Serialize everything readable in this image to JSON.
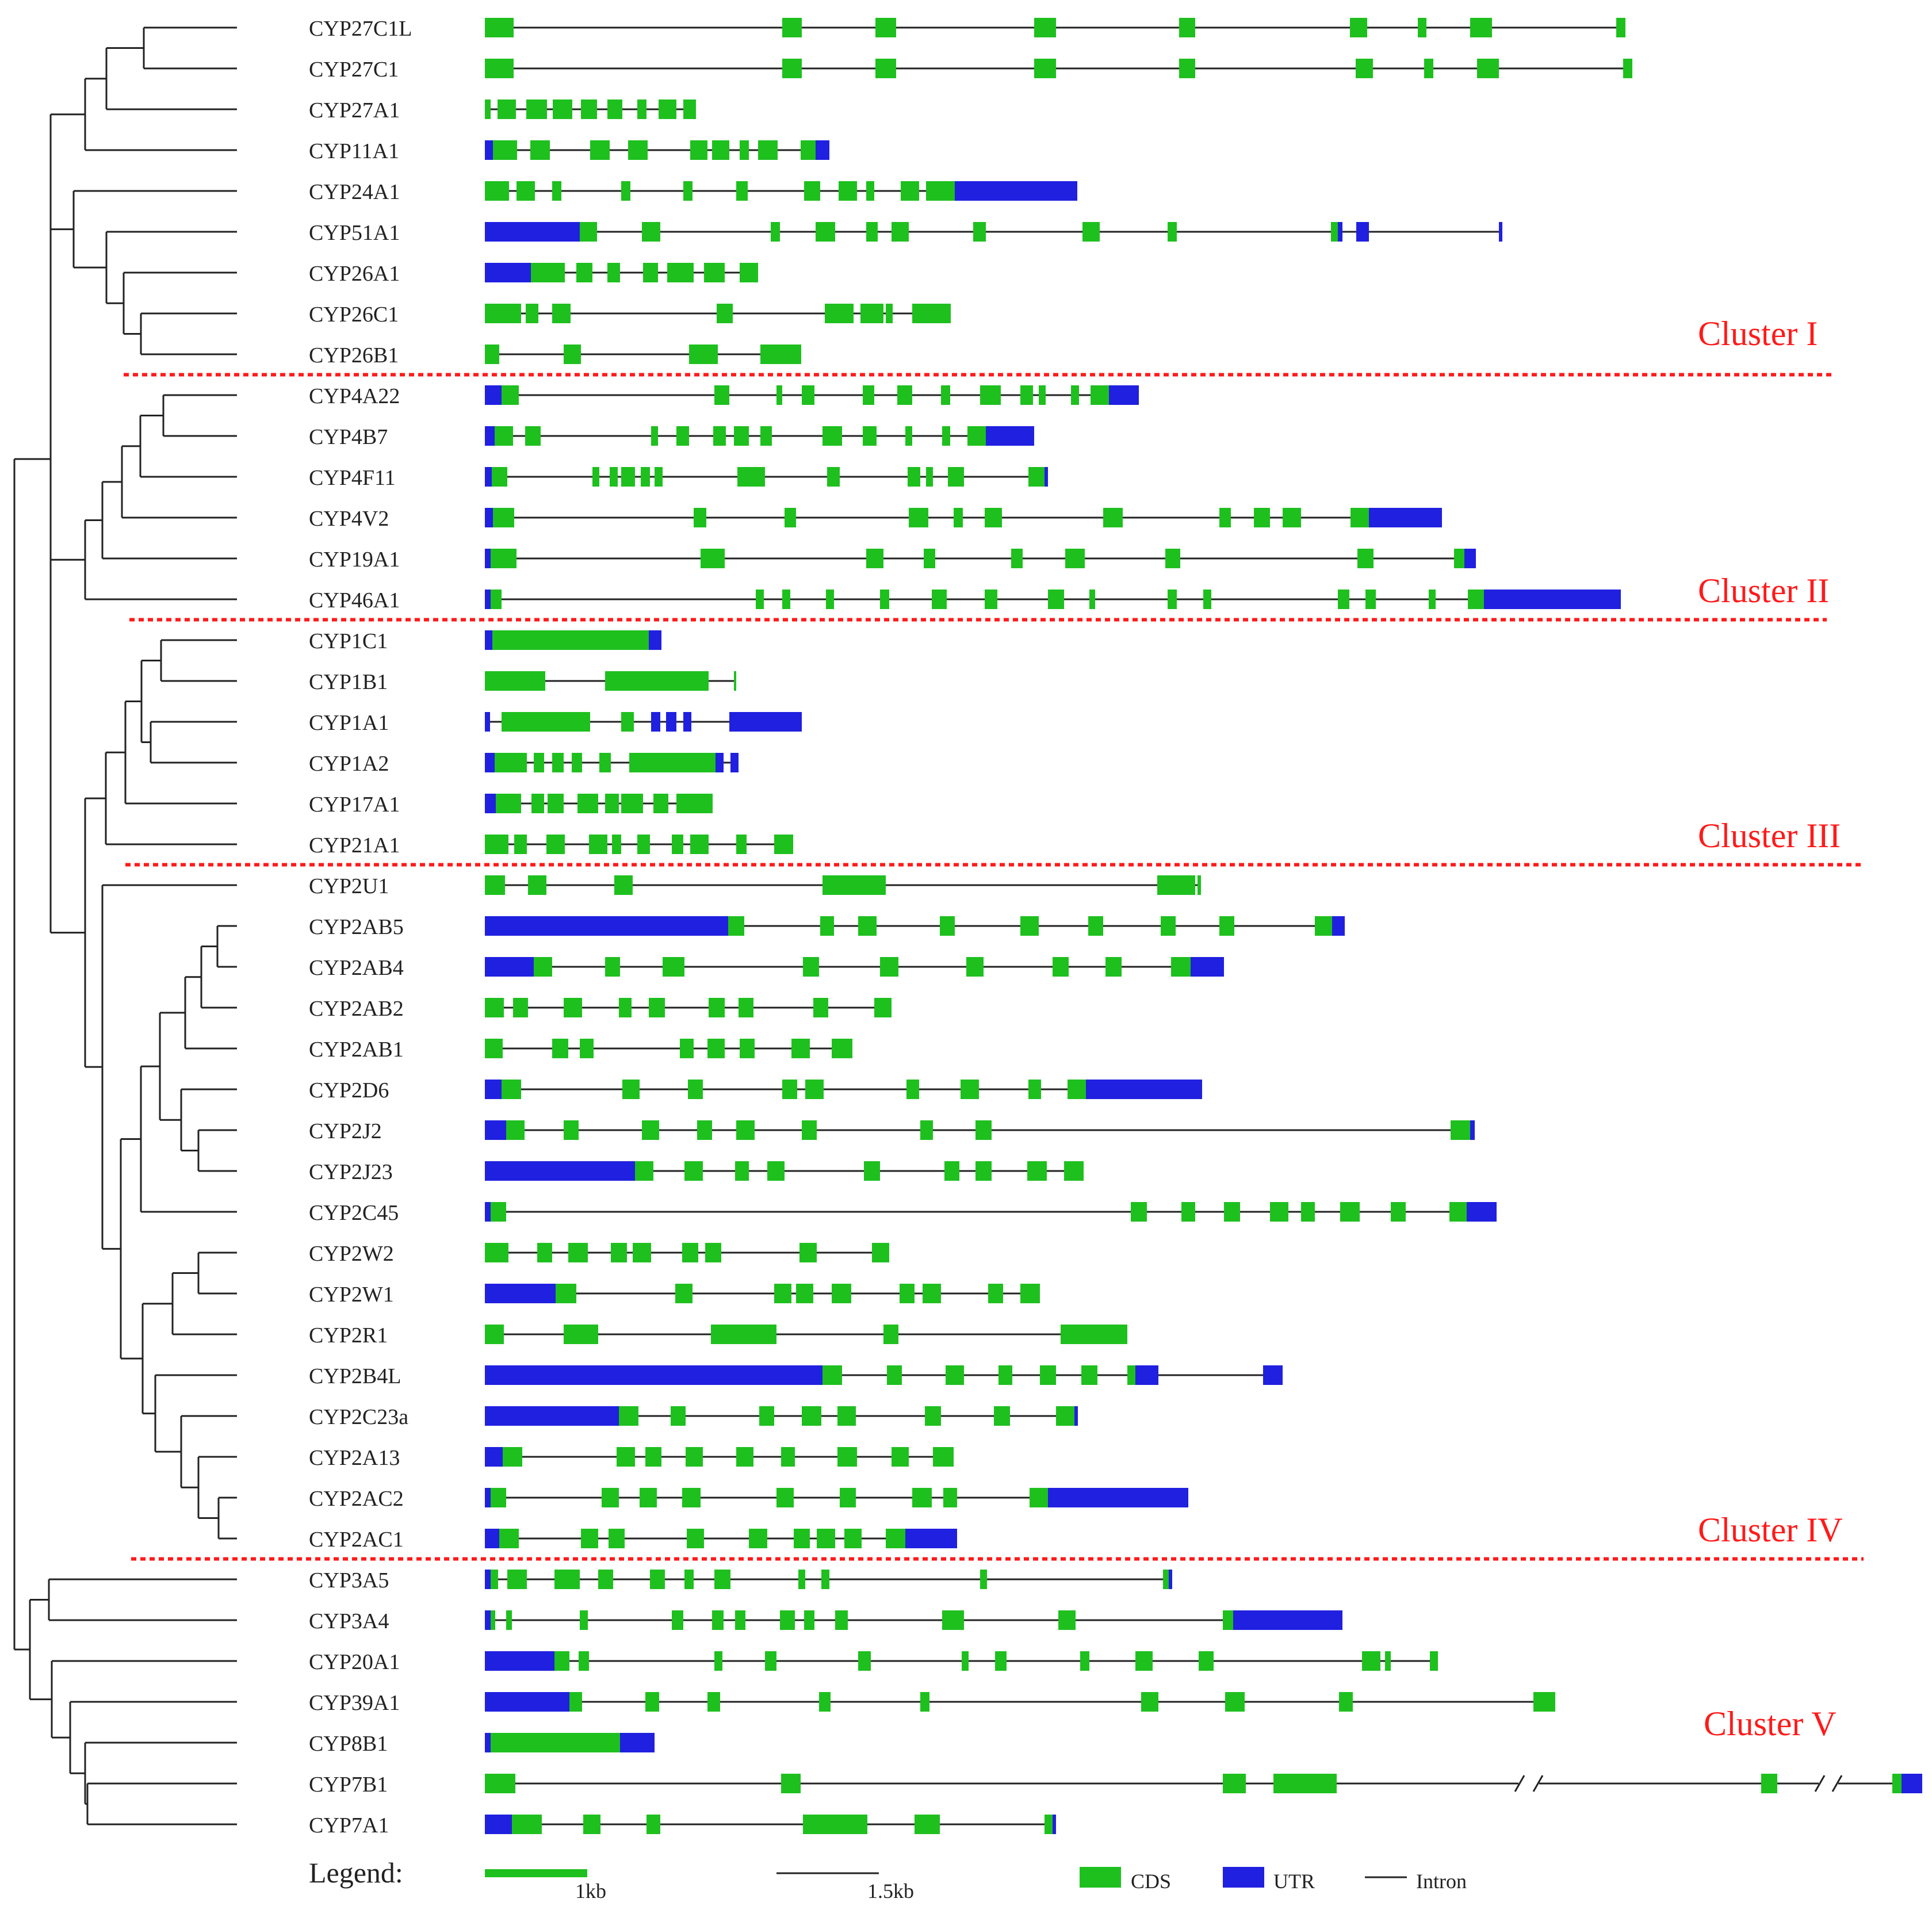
{
  "figure": {
    "kind": "phylogenetic tree with gene exon-intron structures",
    "genes": [
      "CYP27C1L",
      "CYP27C1",
      "CYP27A1",
      "CYP11A1",
      "CYP24A1",
      "CYP51A1",
      "CYP26A1",
      "CYP26C1",
      "CYP26B1",
      "CYP4A22",
      "CYP4B7",
      "CYP4F11",
      "CYP4V2",
      "CYP19A1",
      "CYP46A1",
      "CYP1C1",
      "CYP1B1",
      "CYP1A1",
      "CYP1A2",
      "CYP17A1",
      "CYP21A1",
      "CYP2U1",
      "CYP2AB5",
      "CYP2AB4",
      "CYP2AB2",
      "CYP2AB1",
      "CYP2D6",
      "CYP2J2",
      "CYP2J23",
      "CYP2C45",
      "CYP2W2",
      "CYP2W1",
      "CYP2R1",
      "CYP2B4L",
      "CYP2C23a",
      "CYP2A13",
      "CYP2AC2",
      "CYP2AC1",
      "CYP3A5",
      "CYP3A4",
      "CYP20A1",
      "CYP39A1",
      "CYP8B1",
      "CYP7B1",
      "CYP7A1"
    ],
    "clusters": [
      "Cluster I",
      "Cluster II",
      "Cluster III",
      "Cluster IV",
      "Cluster V"
    ],
    "colors": {
      "cds": "#1ec01e",
      "utr": "#2020e0",
      "intron": "#222222",
      "cluster": "#ff1a1a"
    }
  },
  "legend": {
    "title": "Legend:",
    "scale_1kb": "1kb",
    "scale_15kb": "1.5kb",
    "cds_label": "CDS",
    "utr_label": "UTR",
    "intron_label": "Intron"
  }
}
